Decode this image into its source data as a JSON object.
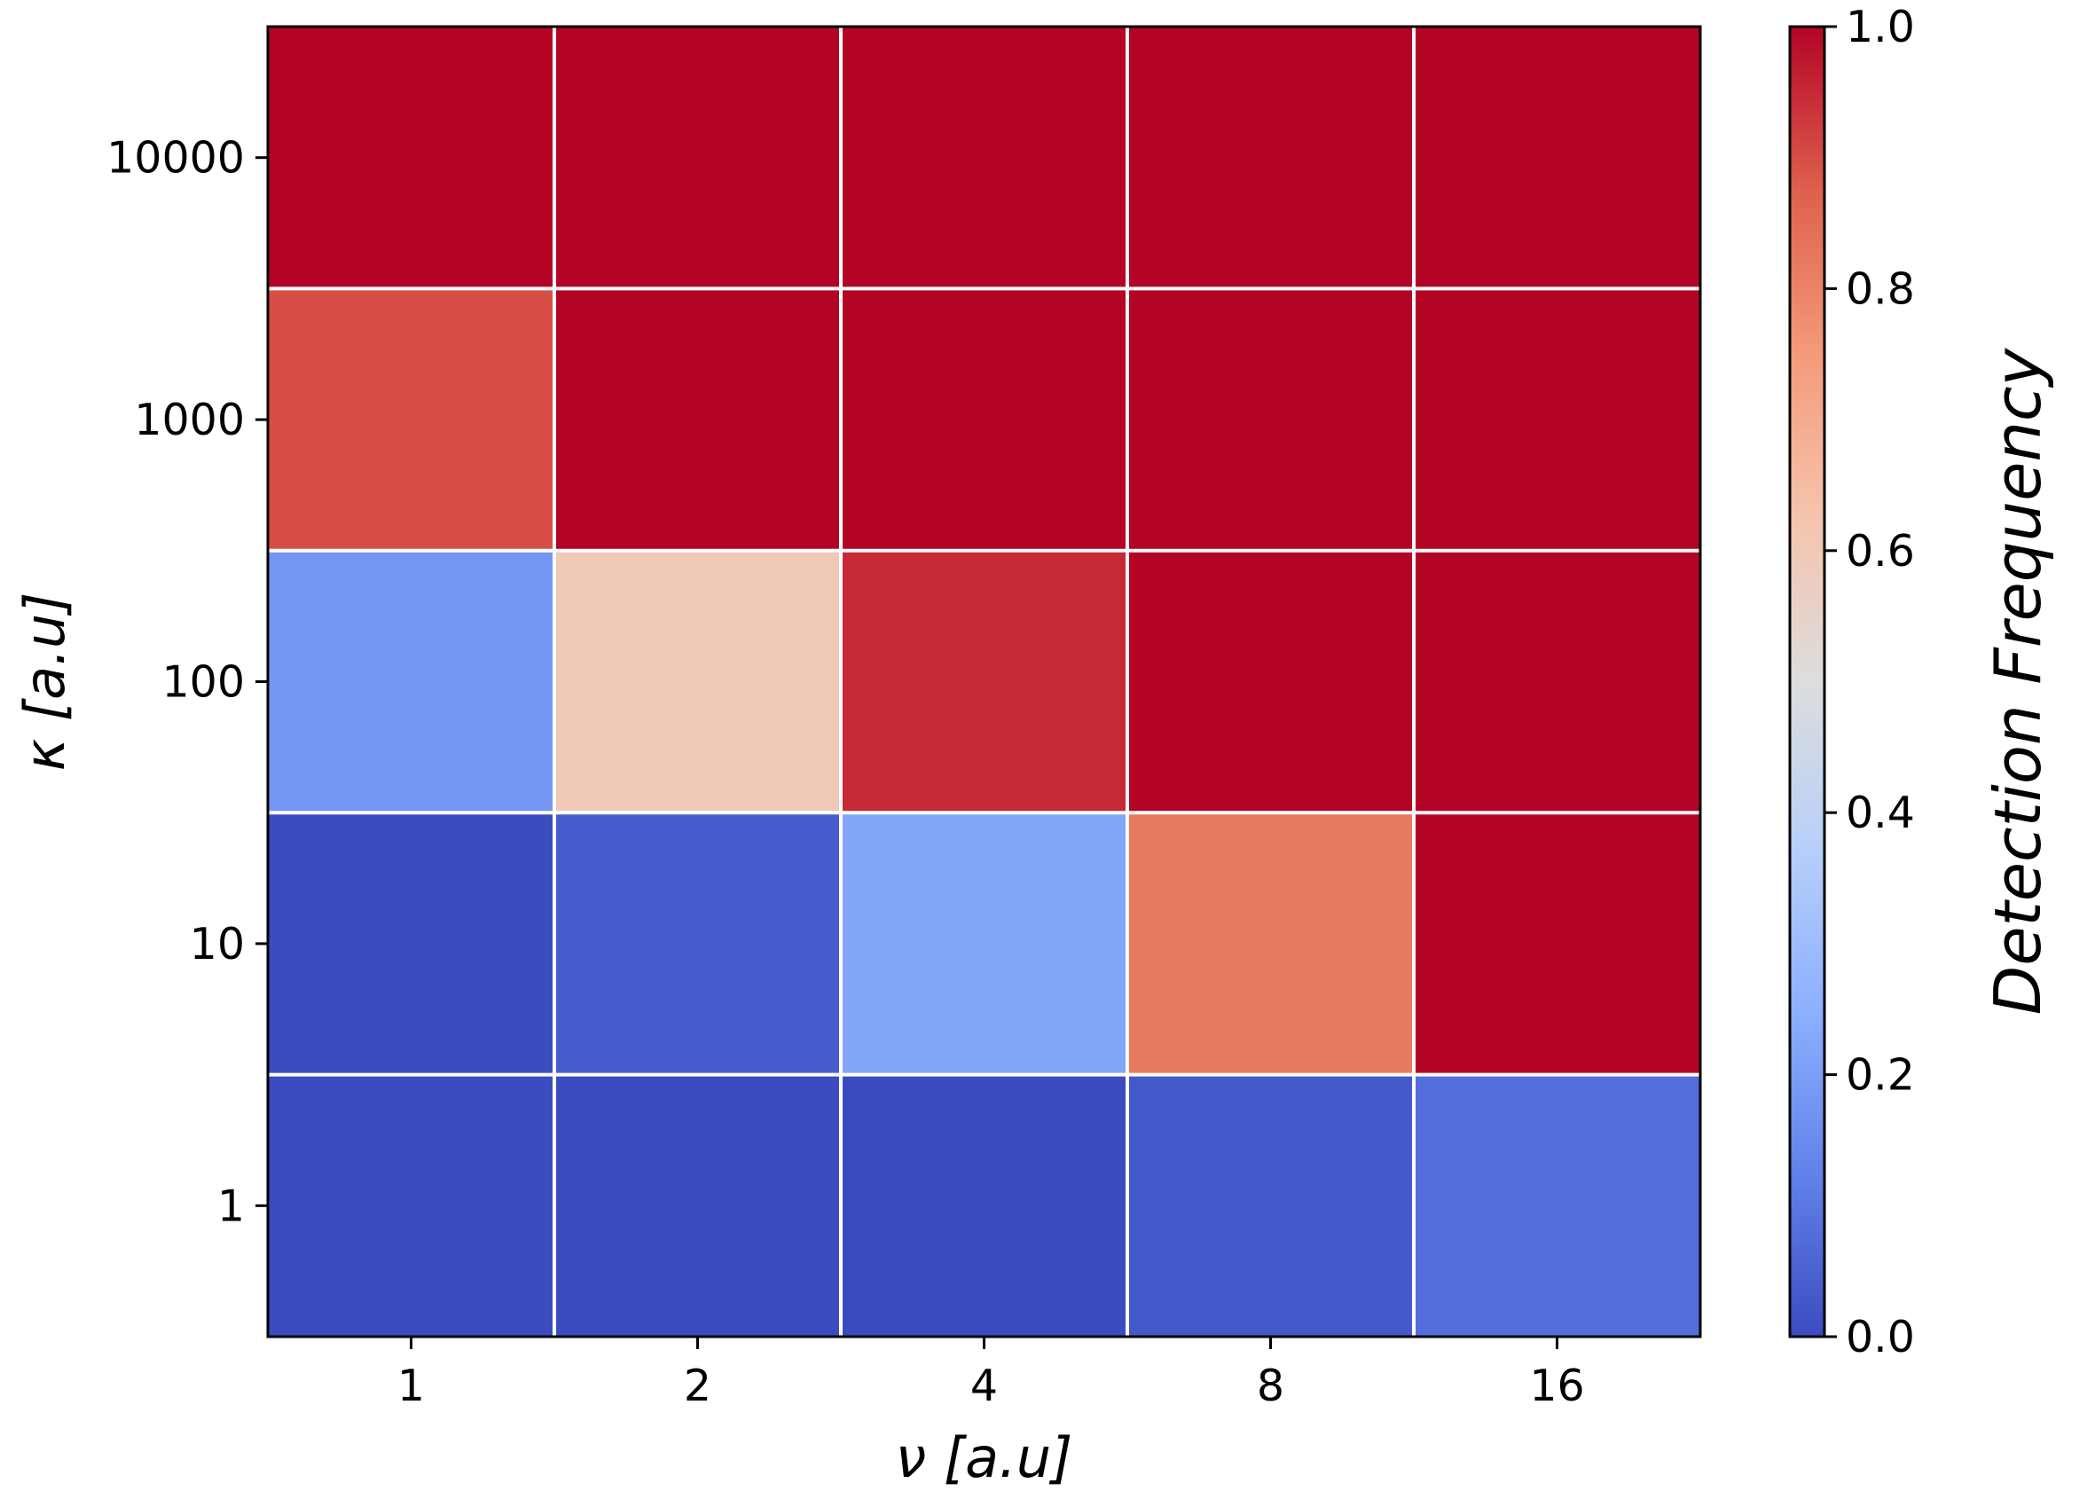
{
  "chart_data": {
    "type": "heatmap",
    "x_categories": [
      "1",
      "2",
      "4",
      "8",
      "16"
    ],
    "y_categories": [
      "1",
      "10",
      "100",
      "1000",
      "10000"
    ],
    "xlabel": "ν [a.u]",
    "ylabel": "κ [a.u]",
    "values": [
      [
        0.0,
        0.0,
        0.0,
        0.03,
        0.08
      ],
      [
        0.0,
        0.04,
        0.22,
        0.82,
        1.0
      ],
      [
        0.18,
        0.6,
        0.95,
        1.0,
        1.0
      ],
      [
        0.9,
        1.0,
        1.0,
        1.0,
        1.0
      ],
      [
        1.0,
        1.0,
        1.0,
        1.0,
        1.0
      ]
    ],
    "colormap": "coolwarm",
    "vmin": 0.0,
    "vmax": 1.0,
    "colorbar": {
      "label": "Detection Frequency",
      "ticks": [
        "0.0",
        "0.2",
        "0.4",
        "0.6",
        "0.8",
        "1.0"
      ]
    },
    "grid": true,
    "grid_color": "#ffffff"
  }
}
